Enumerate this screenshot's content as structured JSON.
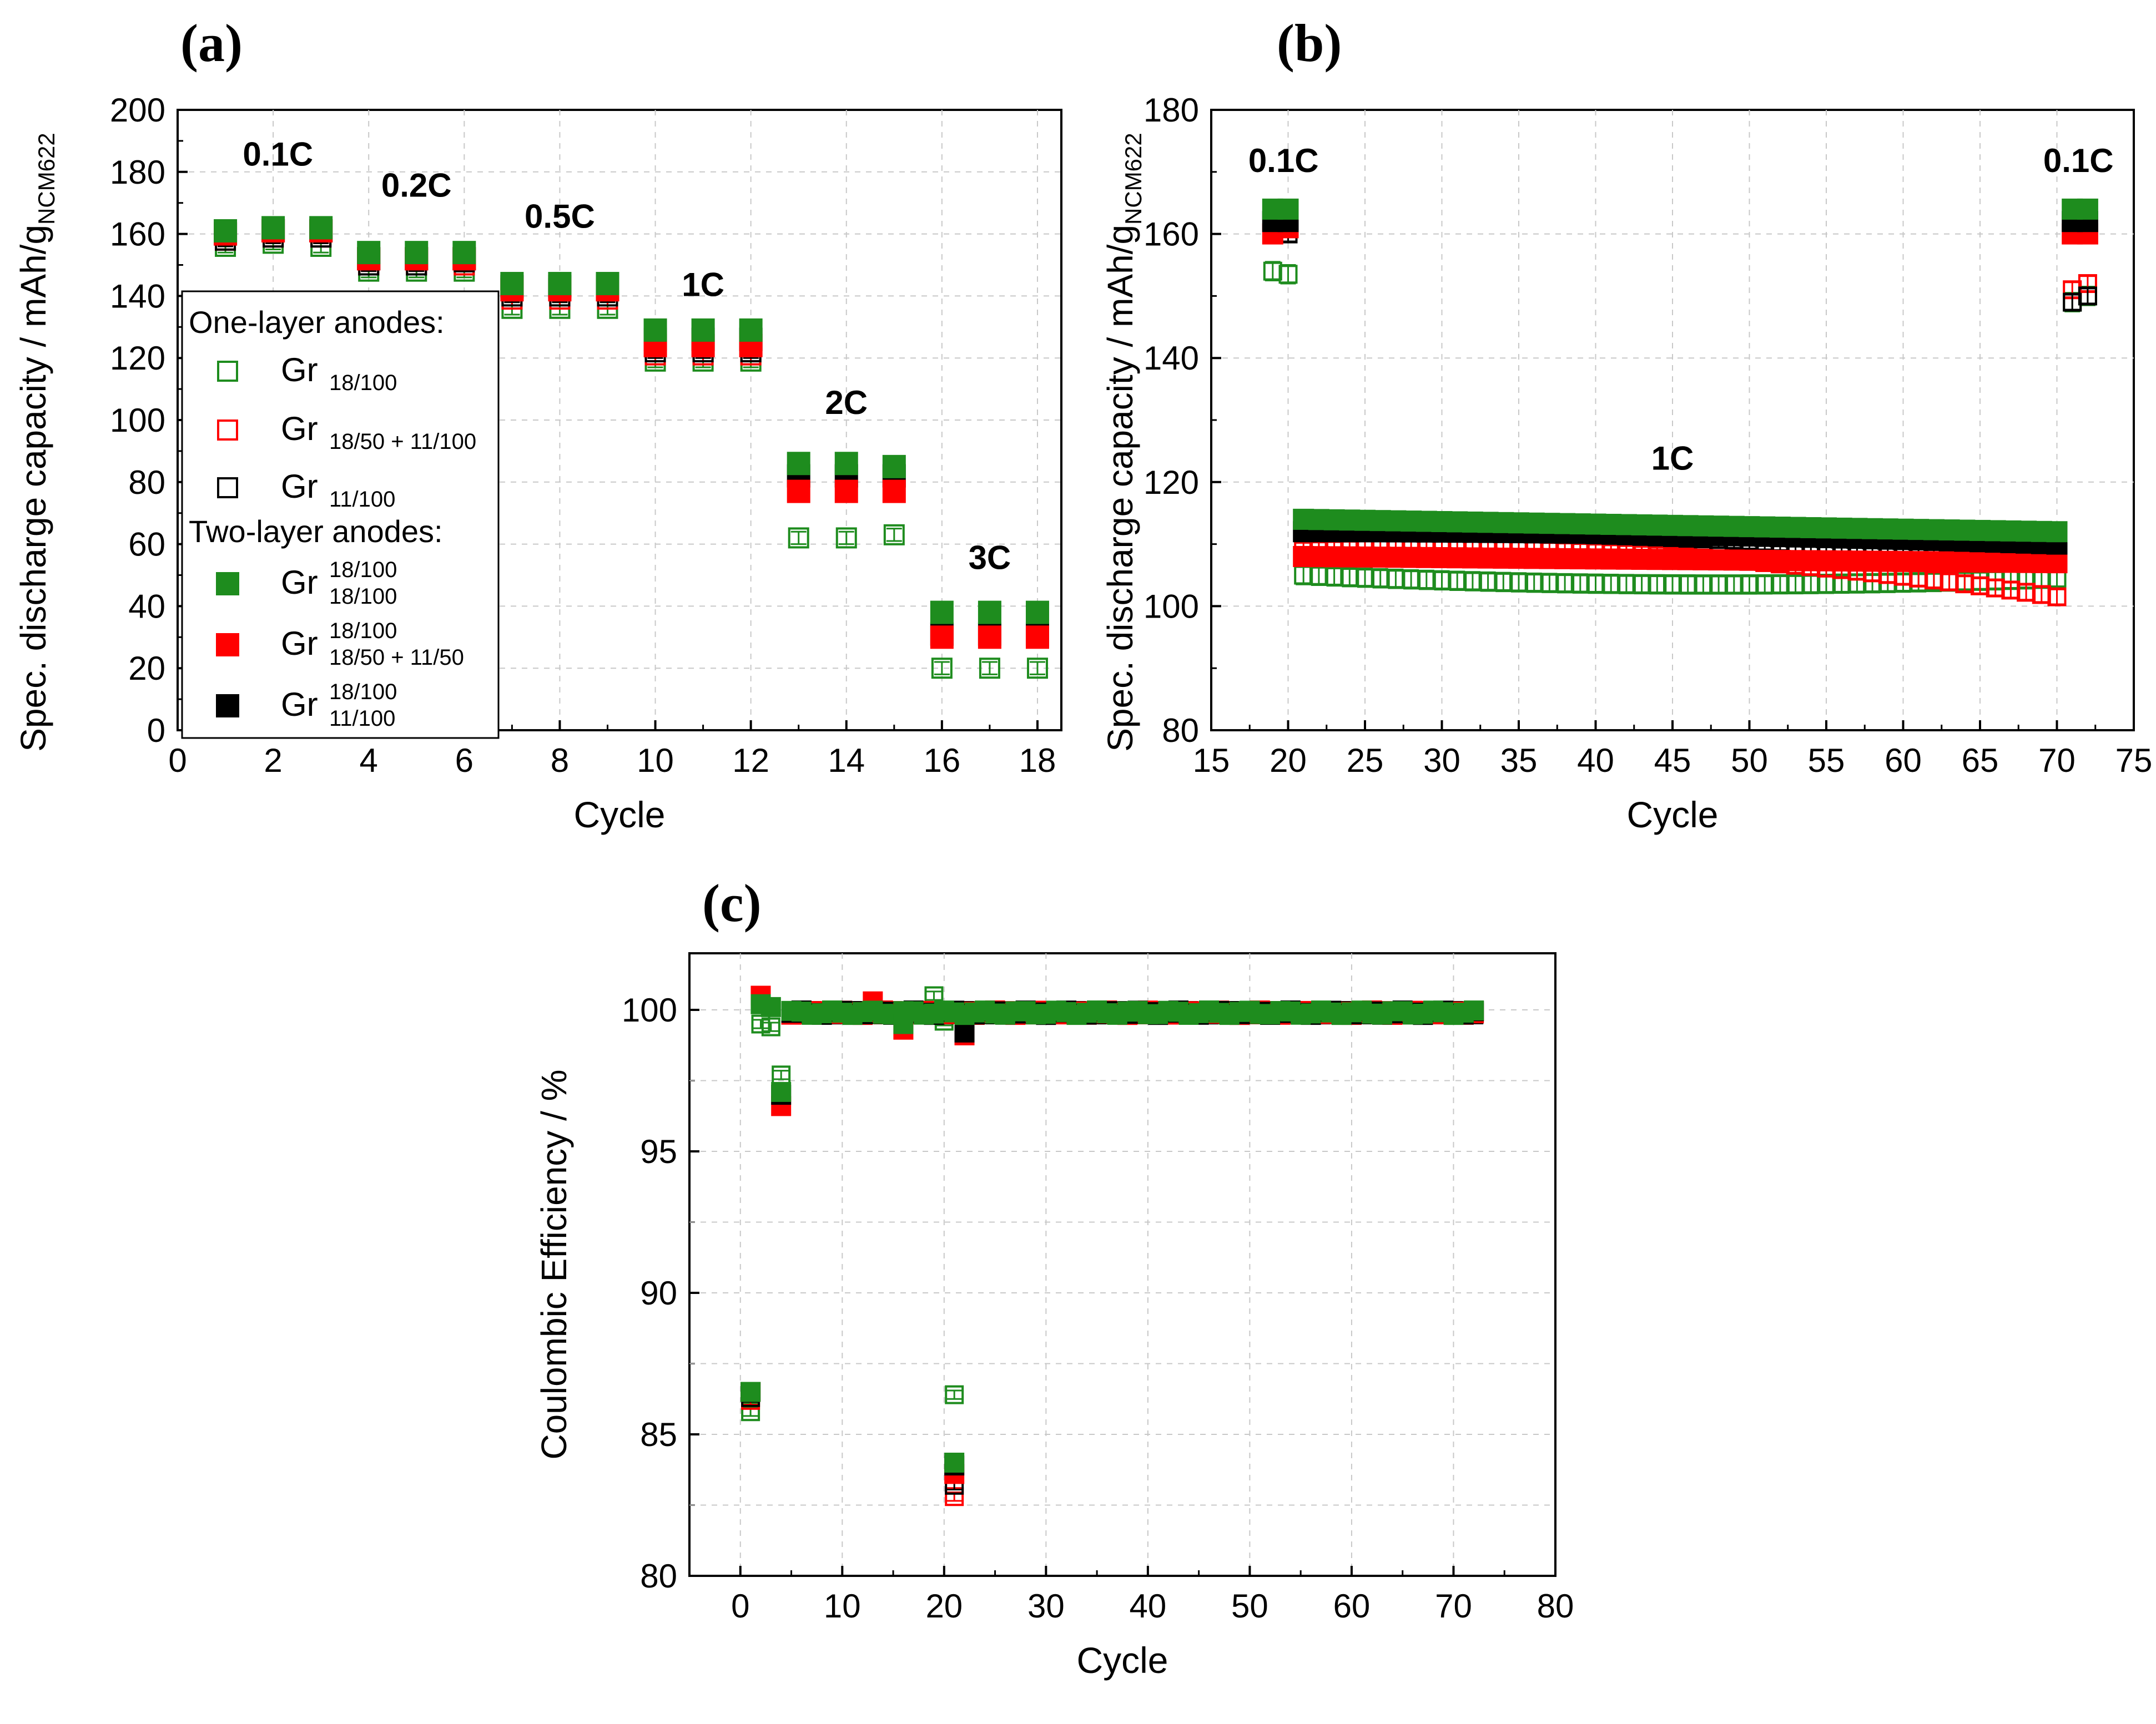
{
  "colors": {
    "green": "#1e8c1e",
    "red": "#ff0000",
    "black": "#000000",
    "grid": "#c8c8c8"
  },
  "chart_data": [
    {
      "panel_label": "(a)",
      "type": "scatter",
      "xlabel": "Cycle",
      "ylabel_main": "Spec. discharge capacity / mAh/g",
      "ylabel_sub": "NCM622",
      "xlim": [
        0,
        18.5
      ],
      "ylim": [
        0,
        200
      ],
      "xticks": [
        0,
        2,
        4,
        6,
        8,
        10,
        12,
        14,
        16,
        18
      ],
      "yticks": [
        0,
        20,
        40,
        60,
        80,
        100,
        120,
        140,
        160,
        180,
        200
      ],
      "annotations": [
        {
          "text": "0.1C",
          "x": 2.1,
          "y": 182
        },
        {
          "text": "0.2C",
          "x": 5.0,
          "y": 172
        },
        {
          "text": "0.5C",
          "x": 8.0,
          "y": 162
        },
        {
          "text": "1C",
          "x": 11.0,
          "y": 140
        },
        {
          "text": "2C",
          "x": 14.0,
          "y": 102
        },
        {
          "text": "3C",
          "x": 17.0,
          "y": 52
        }
      ],
      "legend": {
        "position": "left",
        "heading_one_layer": "One-layer anodes:",
        "heading_two_layer": "Two-layer anodes:",
        "entries": [
          {
            "key": "s1",
            "prefix": "Gr",
            "sub": "18/100",
            "sup": ""
          },
          {
            "key": "s2",
            "prefix": "Gr",
            "sub": "18/50 + 11/100",
            "sup": ""
          },
          {
            "key": "s3",
            "prefix": "Gr",
            "sub": "11/100",
            "sup": ""
          },
          {
            "key": "s4",
            "prefix": "Gr",
            "sup": "18/100",
            "sub": "18/100"
          },
          {
            "key": "s5",
            "prefix": "Gr",
            "sup": "18/100",
            "sub": "18/50 + 11/50"
          },
          {
            "key": "s6",
            "prefix": "Gr",
            "sup": "18/100",
            "sub": "11/100"
          }
        ]
      },
      "x": [
        1,
        2,
        3,
        4,
        5,
        6,
        7,
        8,
        9,
        10,
        11,
        12,
        13,
        14,
        15,
        16,
        17,
        18
      ],
      "series": [
        {
          "key": "s1",
          "name": "Gr 18/100 (one-layer)",
          "marker": "open",
          "color": "green",
          "errors": 2,
          "values": [
            156,
            157,
            156,
            148,
            148,
            148,
            136,
            136,
            136,
            119,
            119,
            119,
            62,
            62,
            63,
            20,
            20,
            20
          ]
        },
        {
          "key": "s2",
          "name": "Gr 18/50 + 11/100 (one-layer)",
          "marker": "open",
          "color": "red",
          "errors": 2,
          "values": [
            158,
            159,
            159,
            150,
            150,
            150,
            139,
            139,
            139,
            121,
            121,
            121,
            80,
            80,
            80,
            31,
            31,
            31
          ]
        },
        {
          "key": "s3",
          "name": "Gr 11/100 (one-layer)",
          "marker": "open",
          "color": "black",
          "errors": 2,
          "values": [
            158,
            159,
            159,
            150,
            150,
            151,
            140,
            140,
            140,
            122,
            122,
            122,
            81,
            81,
            81,
            32,
            32,
            32
          ]
        },
        {
          "key": "s6",
          "name": "Gr 18/100 | 11/100 (two-layer)",
          "marker": "filled",
          "color": "black",
          "errors": 2,
          "values": [
            160,
            161,
            161,
            152,
            152,
            152,
            143,
            143,
            143,
            126,
            126,
            126,
            82,
            82,
            82,
            31,
            31,
            31
          ]
        },
        {
          "key": "s5",
          "name": "Gr 18/100 | 18/50 + 11/50 (two-layer)",
          "marker": "filled",
          "color": "red",
          "errors": 2,
          "values": [
            160,
            161,
            161,
            152,
            152,
            152,
            142,
            142,
            142,
            124,
            124,
            124,
            77,
            77,
            77,
            30,
            30,
            30
          ]
        },
        {
          "key": "s4",
          "name": "Gr 18/100 | 18/100 (two-layer)",
          "marker": "filled",
          "color": "green",
          "errors": 2,
          "values": [
            161,
            162,
            162,
            154,
            154,
            154,
            144,
            144,
            144,
            129,
            129,
            129,
            86,
            86,
            85,
            38,
            38,
            38
          ]
        }
      ]
    },
    {
      "panel_label": "(b)",
      "type": "scatter",
      "xlabel": "Cycle",
      "ylabel_main": "Spec. discharge capacity / mAh/g",
      "ylabel_sub": "NCM622",
      "xlim": [
        15,
        75
      ],
      "ylim": [
        80,
        180
      ],
      "xticks": [
        15,
        20,
        25,
        30,
        35,
        40,
        45,
        50,
        55,
        60,
        65,
        70,
        75
      ],
      "yticks": [
        80,
        100,
        120,
        140,
        160,
        180
      ],
      "annotations": [
        {
          "text": "0.1C",
          "x": 19.7,
          "y": 170
        },
        {
          "text": "1C",
          "x": 45.0,
          "y": 122
        },
        {
          "text": "0.1C",
          "x": 71.4,
          "y": 170
        }
      ],
      "x_initial": [
        19,
        20
      ],
      "x_final": [
        71,
        72
      ],
      "x_range": [
        21,
        70
      ],
      "series": [
        {
          "key": "s1",
          "name": "Gr 18/100 (one-layer)",
          "marker": "open",
          "color": "green",
          "initial": [
            154,
            153.5
          ],
          "final": [
            149,
            150
          ],
          "range_start": 105,
          "range_mid": 103.5,
          "range_end": 104.5,
          "errors": 1.5
        },
        {
          "key": "s2",
          "name": "Gr 18/50 + 11/100 (one-layer)",
          "marker": "open",
          "color": "red",
          "initial": [
            162,
            162
          ],
          "final": [
            151,
            152
          ],
          "range_start": 109,
          "range_mid": 108,
          "range_end": 101.5,
          "errors": 1.2
        },
        {
          "key": "s3",
          "name": "Gr 11/100 (one-layer)",
          "marker": "open",
          "color": "black",
          "initial": [
            160,
            160
          ],
          "final": [
            149,
            150
          ],
          "range_start": 112,
          "range_mid": 111,
          "range_end": 107,
          "errors": 1.2
        },
        {
          "key": "s5",
          "name": "Gr 18/100 | 18/50 + 11/50 (two-layer)",
          "marker": "filled",
          "color": "red",
          "initial": [
            160,
            161
          ],
          "final": [
            160,
            160
          ],
          "range_start": 108,
          "range_mid": 107.5,
          "range_end": 107,
          "errors": 1.2
        },
        {
          "key": "s6",
          "name": "Gr 18/100 | 11/100 (two-layer)",
          "marker": "filled",
          "color": "black",
          "initial": [
            162,
            162
          ],
          "final": [
            162,
            162
          ],
          "range_start": 112,
          "range_mid": 111.5,
          "range_end": 110,
          "errors": 1.2
        },
        {
          "key": "s4",
          "name": "Gr 18/100 | 18/100 (two-layer)",
          "marker": "filled",
          "color": "green",
          "initial": [
            164,
            164
          ],
          "final": [
            164,
            164
          ],
          "range_start": 114,
          "range_mid": 113,
          "range_end": 112,
          "errors": 1.5
        }
      ]
    },
    {
      "panel_label": "(c)",
      "type": "scatter",
      "xlabel": "Cycle",
      "ylabel": "Coulombic Efficiency / %",
      "xlim": [
        -5,
        80
      ],
      "ylim": [
        80,
        102
      ],
      "xticks": [
        0,
        10,
        20,
        30,
        40,
        50,
        60,
        70,
        80
      ],
      "yticks": [
        80,
        85,
        90,
        95,
        100
      ],
      "series": [
        {
          "key": "s1",
          "name": "Gr 18/100 (one-layer)",
          "marker": "open",
          "color": "green",
          "points": [
            [
              1,
              85.8
            ],
            [
              2,
              99.5
            ],
            [
              3,
              99.4
            ],
            [
              4,
              97.7
            ],
            [
              19,
              100.5
            ],
            [
              21,
              86.4
            ],
            [
              20,
              99.6
            ]
          ]
        },
        {
          "key": "s2",
          "name": "Gr 18/50 + 11/100 (one-layer)",
          "marker": "open",
          "color": "red",
          "points": [
            [
              1,
              86.2
            ],
            [
              4,
              96.8
            ],
            [
              21,
              82.8
            ]
          ]
        },
        {
          "key": "s3",
          "name": "Gr 11/100 (one-layer)",
          "marker": "open",
          "color": "black",
          "points": [
            [
              1,
              86.3
            ],
            [
              4,
              97.0
            ],
            [
              21,
              83.2
            ]
          ]
        },
        {
          "key": "s5",
          "name": "Gr 18/100 | 18/50 + 11/50 (two-layer)",
          "marker": "filled",
          "color": "red",
          "points": [
            [
              1,
              86.5
            ],
            [
              2,
              100.5
            ],
            [
              4,
              96.6
            ],
            [
              13,
              100.3
            ],
            [
              16,
              99.3
            ],
            [
              21,
              83.6
            ],
            [
              22,
              99.1
            ]
          ]
        },
        {
          "key": "s6",
          "name": "Gr 18/100 | 11/100 (two-layer)",
          "marker": "filled",
          "color": "black",
          "points": [
            [
              1,
              86.5
            ],
            [
              4,
              97.0
            ],
            [
              21,
              83.9
            ],
            [
              22,
              99.2
            ]
          ]
        },
        {
          "key": "s4",
          "name": "Gr 18/100 | 18/100 (two-layer)",
          "marker": "filled",
          "color": "green",
          "points": [
            [
              1,
              86.5
            ],
            [
              2,
              100.2
            ],
            [
              3,
              100.1
            ],
            [
              4,
              97.1
            ],
            [
              16,
              99.5
            ],
            [
              21,
              84.0
            ]
          ]
        }
      ],
      "plateau": {
        "x_start": 5,
        "x_end": 72,
        "value": 99.9
      }
    }
  ]
}
